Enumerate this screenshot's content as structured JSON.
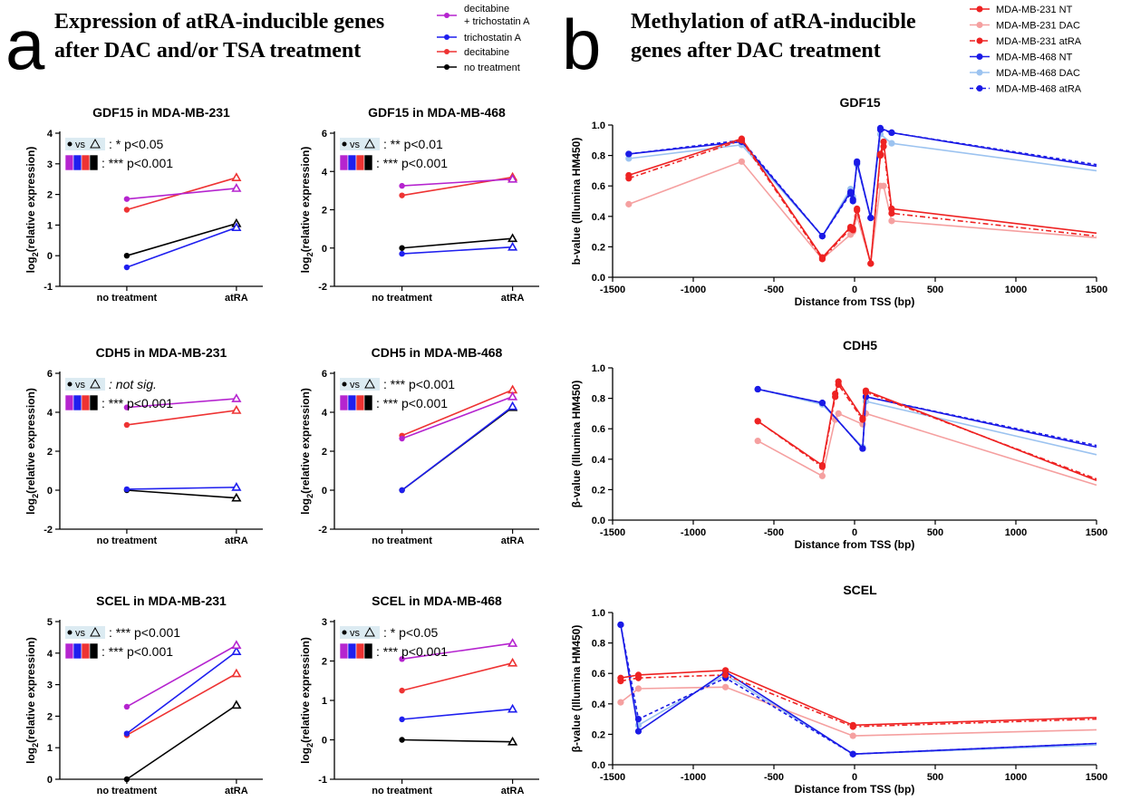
{
  "panel_a": {
    "letter": "a",
    "title_line1": "Expression of atRA-inducible genes",
    "title_line2": "after DAC and/or TSA treatment",
    "legend": [
      {
        "label_line1": "decitabine",
        "label_line2": "+ trichostatin A",
        "color": "#B524CF"
      },
      {
        "label_line1": "trichostatin A",
        "label_line2": "",
        "color": "#1F1FEF"
      },
      {
        "label_line1": "decitabine",
        "label_line2": "",
        "color": "#EE3333"
      },
      {
        "label_line1": "no treatment",
        "label_line2": "",
        "color": "#000000"
      }
    ]
  },
  "panel_b": {
    "letter": "b",
    "title_line1": "Methylation of atRA-inducible",
    "title_line2": "genes after DAC treatment",
    "legend": [
      {
        "label": "MDA-MB-231 NT",
        "color": "#EE2222",
        "dash": "solid"
      },
      {
        "label": "MDA-MB-231 DAC",
        "color": "#F5A0A0",
        "dash": "solid"
      },
      {
        "label": "MDA-MB-231 atRA",
        "color": "#EE2222",
        "dash": "dashdot"
      },
      {
        "label": "MDA-MB-468 NT",
        "color": "#1A1AE6",
        "dash": "solid"
      },
      {
        "label": "MDA-MB-468 DAC",
        "color": "#9CC3F0",
        "dash": "solid"
      },
      {
        "label": "MDA-MB-468 atRA",
        "color": "#1A1AE6",
        "dash": "dash"
      }
    ]
  },
  "chart_data": [
    {
      "type": "line",
      "title": "GDF15 in MDA-MB-231",
      "categories": [
        "no treatment",
        "atRA"
      ],
      "ylabel": "log2(relative expression)",
      "ylim": [
        -1,
        4
      ],
      "yticks": [
        -1,
        0,
        1,
        2,
        3,
        4
      ],
      "annotations": [
        {
          "key": "• vs Δ",
          "text": ": * p<0.05"
        },
        {
          "key": "all",
          "text": ": *** p<0.001"
        }
      ],
      "series": [
        {
          "name": "decitabine + trichostatin A",
          "values": [
            1.85,
            2.2
          ]
        },
        {
          "name": "trichostatin A",
          "values": [
            -0.38,
            0.92
          ]
        },
        {
          "name": "decitabine",
          "values": [
            1.5,
            2.55
          ]
        },
        {
          "name": "no treatment",
          "values": [
            0.0,
            1.05
          ]
        }
      ]
    },
    {
      "type": "line",
      "title": "GDF15 in MDA-MB-468",
      "categories": [
        "no treatment",
        "atRA"
      ],
      "ylabel": "log2(relative expression)",
      "ylim": [
        -2,
        6
      ],
      "yticks": [
        -2,
        0,
        2,
        4,
        6
      ],
      "annotations": [
        {
          "key": "• vs Δ",
          "text": ": ** p<0.01"
        },
        {
          "key": "all",
          "text": ": *** p<0.001"
        }
      ],
      "series": [
        {
          "name": "decitabine + trichostatin A",
          "values": [
            3.25,
            3.6
          ]
        },
        {
          "name": "trichostatin A",
          "values": [
            -0.3,
            0.05
          ]
        },
        {
          "name": "decitabine",
          "values": [
            2.75,
            3.7
          ]
        },
        {
          "name": "no treatment",
          "values": [
            0.0,
            0.5
          ]
        }
      ]
    },
    {
      "type": "line",
      "title": "CDH5 in MDA-MB-231",
      "categories": [
        "no treatment",
        "atRA"
      ],
      "ylabel": "log2(relative expression)",
      "ylim": [
        -2,
        6
      ],
      "yticks": [
        -2,
        0,
        2,
        4,
        6
      ],
      "annotations": [
        {
          "key": "• vs Δ",
          "text": ": not sig."
        },
        {
          "key": "all",
          "text": ": *** p<0.001"
        }
      ],
      "series": [
        {
          "name": "decitabine + trichostatin A",
          "values": [
            4.25,
            4.7
          ]
        },
        {
          "name": "trichostatin A",
          "values": [
            0.05,
            0.15
          ]
        },
        {
          "name": "decitabine",
          "values": [
            3.35,
            4.1
          ]
        },
        {
          "name": "no treatment",
          "values": [
            0.0,
            -0.4
          ]
        }
      ]
    },
    {
      "type": "line",
      "title": "CDH5 in MDA-MB-468",
      "categories": [
        "no treatment",
        "atRA"
      ],
      "ylabel": "log2(relative expression)",
      "ylim": [
        -2,
        6
      ],
      "yticks": [
        -2,
        0,
        2,
        4,
        6
      ],
      "annotations": [
        {
          "key": "• vs Δ",
          "text": ": *** p<0.001"
        },
        {
          "key": "all",
          "text": ": *** p<0.001"
        }
      ],
      "series": [
        {
          "name": "decitabine + trichostatin A",
          "values": [
            2.65,
            4.8
          ]
        },
        {
          "name": "trichostatin A",
          "values": [
            0.0,
            4.3
          ]
        },
        {
          "name": "decitabine",
          "values": [
            2.8,
            5.15
          ]
        },
        {
          "name": "no treatment",
          "values": [
            0.0,
            4.25
          ]
        }
      ]
    },
    {
      "type": "line",
      "title": "SCEL in MDA-MB-231",
      "categories": [
        "no treatment",
        "atRA"
      ],
      "ylabel": "log2(relative expression)",
      "ylim": [
        0,
        5
      ],
      "yticks": [
        0,
        1,
        2,
        3,
        4,
        5
      ],
      "annotations": [
        {
          "key": "• vs Δ",
          "text": ": *** p<0.001"
        },
        {
          "key": "all",
          "text": ": *** p<0.001"
        }
      ],
      "series": [
        {
          "name": "decitabine + trichostatin A",
          "values": [
            2.3,
            4.25
          ]
        },
        {
          "name": "trichostatin A",
          "values": [
            1.45,
            4.05
          ]
        },
        {
          "name": "decitabine",
          "values": [
            1.4,
            3.35
          ]
        },
        {
          "name": "no treatment",
          "values": [
            0.0,
            2.35
          ]
        }
      ]
    },
    {
      "type": "line",
      "title": "SCEL in MDA-MB-468",
      "categories": [
        "no treatment",
        "atRA"
      ],
      "ylabel": "log2(relative expression)",
      "ylim": [
        -1,
        3
      ],
      "yticks": [
        -1,
        0,
        1,
        2,
        3
      ],
      "annotations": [
        {
          "key": "• vs Δ",
          "text": ": * p<0.05"
        },
        {
          "key": "all",
          "text": ": *** p<0.001"
        }
      ],
      "series": [
        {
          "name": "decitabine + trichostatin A",
          "values": [
            2.05,
            2.45
          ]
        },
        {
          "name": "trichostatin A",
          "values": [
            0.52,
            0.78
          ]
        },
        {
          "name": "decitabine",
          "values": [
            1.25,
            1.95
          ]
        },
        {
          "name": "no treatment",
          "values": [
            0.0,
            -0.05
          ]
        }
      ]
    },
    {
      "type": "line",
      "title": "GDF15",
      "xlabel": "Distance from TSS (bp)",
      "ylabel": "b-value (Illumina HM450)",
      "xlim": [
        -1500,
        1500
      ],
      "ylim": [
        0,
        1.0
      ],
      "xticks": [
        -1500,
        -1000,
        -500,
        0,
        500,
        1000,
        1500
      ],
      "yticks": [
        0,
        0.2,
        0.4,
        0.6,
        0.8,
        1.0
      ],
      "series": [
        {
          "name": "MDA-MB-231 NT",
          "x": [
            -1400,
            -700,
            -200,
            -25,
            -10,
            15,
            100,
            160,
            180,
            230,
            1500
          ],
          "y": [
            0.67,
            0.91,
            0.13,
            0.33,
            0.32,
            0.45,
            0.09,
            0.81,
            0.89,
            0.45,
            0.29
          ]
        },
        {
          "name": "MDA-MB-231 DAC",
          "x": [
            -1400,
            -700,
            -200,
            -25,
            -10,
            15,
            100,
            160,
            180,
            230,
            1500
          ],
          "y": [
            0.48,
            0.76,
            0.12,
            0.28,
            0.3,
            0.4,
            0.09,
            0.6,
            0.6,
            0.37,
            0.26
          ]
        },
        {
          "name": "MDA-MB-231 atRA",
          "x": [
            -1400,
            -700,
            -200,
            -25,
            -10,
            15,
            100,
            160,
            180,
            230,
            1500
          ],
          "y": [
            0.65,
            0.9,
            0.12,
            0.32,
            0.31,
            0.44,
            0.09,
            0.8,
            0.86,
            0.42,
            0.27
          ]
        },
        {
          "name": "MDA-MB-468 NT",
          "x": [
            -1400,
            -700,
            -200,
            -25,
            -10,
            15,
            100,
            160,
            230,
            1500
          ],
          "y": [
            0.81,
            0.89,
            0.27,
            0.56,
            0.51,
            0.76,
            0.39,
            0.98,
            0.95,
            0.73
          ]
        },
        {
          "name": "MDA-MB-468 DAC",
          "x": [
            -1400,
            -700,
            -200,
            -25,
            -10,
            15,
            100,
            160,
            230,
            1500
          ],
          "y": [
            0.78,
            0.87,
            0.27,
            0.58,
            0.53,
            0.74,
            0.39,
            0.94,
            0.88,
            0.7
          ]
        },
        {
          "name": "MDA-MB-468 atRA",
          "x": [
            -1400,
            -700,
            -200,
            -25,
            -10,
            15,
            100,
            160,
            230,
            1500
          ],
          "y": [
            0.81,
            0.9,
            0.27,
            0.55,
            0.5,
            0.75,
            0.39,
            0.97,
            0.95,
            0.74
          ]
        }
      ]
    },
    {
      "type": "line",
      "title": "CDH5",
      "xlabel": "Distance from TSS (bp)",
      "ylabel": "β-value (Illumina HM450)",
      "xlim": [
        -1500,
        1500
      ],
      "ylim": [
        0,
        1.0
      ],
      "xticks": [
        -1500,
        -1000,
        -500,
        0,
        500,
        1000,
        1500
      ],
      "yticks": [
        0,
        0.2,
        0.4,
        0.6,
        0.8,
        1.0
      ],
      "series": [
        {
          "name": "MDA-MB-231 NT",
          "x": [
            -600,
            -200,
            -120,
            -100,
            50,
            70,
            1500
          ],
          "y": [
            0.65,
            0.36,
            0.83,
            0.91,
            0.67,
            0.85,
            0.26
          ]
        },
        {
          "name": "MDA-MB-231 DAC",
          "x": [
            -600,
            -200,
            -120,
            -100,
            50,
            70,
            1500
          ],
          "y": [
            0.52,
            0.29,
            0.66,
            0.7,
            0.63,
            0.7,
            0.23
          ]
        },
        {
          "name": "MDA-MB-231 atRA",
          "x": [
            -600,
            -200,
            -120,
            -100,
            50,
            70,
            1500
          ],
          "y": [
            0.65,
            0.35,
            0.81,
            0.89,
            0.66,
            0.84,
            0.27
          ]
        },
        {
          "name": "MDA-MB-468 NT",
          "x": [
            -600,
            -200,
            50,
            70,
            1500
          ],
          "y": [
            0.86,
            0.77,
            0.47,
            0.81,
            0.48
          ]
        },
        {
          "name": "MDA-MB-468 DAC",
          "x": [
            -600,
            -200,
            50,
            70,
            1500
          ],
          "y": [
            0.86,
            0.76,
            0.48,
            0.78,
            0.43
          ]
        },
        {
          "name": "MDA-MB-468 atRA",
          "x": [
            -600,
            -200,
            50,
            70,
            1500
          ],
          "y": [
            0.86,
            0.77,
            0.47,
            0.81,
            0.49
          ]
        }
      ]
    },
    {
      "type": "line",
      "title": "SCEL",
      "xlabel": "Distance from TSS (bp)",
      "ylabel": "β-value (Illumina HM450)",
      "xlim": [
        -1500,
        1500
      ],
      "ylim": [
        0,
        1.0
      ],
      "xticks": [
        -1500,
        -1000,
        -500,
        0,
        500,
        1000,
        1500
      ],
      "yticks": [
        0,
        0.2,
        0.4,
        0.6,
        0.8,
        1.0
      ],
      "series": [
        {
          "name": "MDA-MB-231 NT",
          "x": [
            -1450,
            -1340,
            -800,
            -10,
            1500
          ],
          "y": [
            0.57,
            0.59,
            0.62,
            0.26,
            0.31
          ]
        },
        {
          "name": "MDA-MB-231 DAC",
          "x": [
            -1450,
            -1340,
            -800,
            -10,
            1500
          ],
          "y": [
            0.41,
            0.5,
            0.51,
            0.19,
            0.23
          ]
        },
        {
          "name": "MDA-MB-231 atRA",
          "x": [
            -1450,
            -1340,
            -800,
            -10,
            1500
          ],
          "y": [
            0.55,
            0.57,
            0.59,
            0.25,
            0.3
          ]
        },
        {
          "name": "MDA-MB-468 NT",
          "x": [
            -1450,
            -1340,
            -800,
            -10,
            1500
          ],
          "y": [
            0.92,
            0.22,
            0.61,
            0.07,
            0.14
          ]
        },
        {
          "name": "MDA-MB-468 DAC",
          "x": [
            -1450,
            -1340,
            -800,
            -10,
            1500
          ],
          "y": [
            0.92,
            0.26,
            0.59,
            0.07,
            0.13
          ]
        },
        {
          "name": "MDA-MB-468 atRA",
          "x": [
            -1450,
            -1340,
            -800,
            -10,
            1500
          ],
          "y": [
            0.92,
            0.3,
            0.57,
            0.07,
            0.14
          ]
        }
      ]
    }
  ]
}
